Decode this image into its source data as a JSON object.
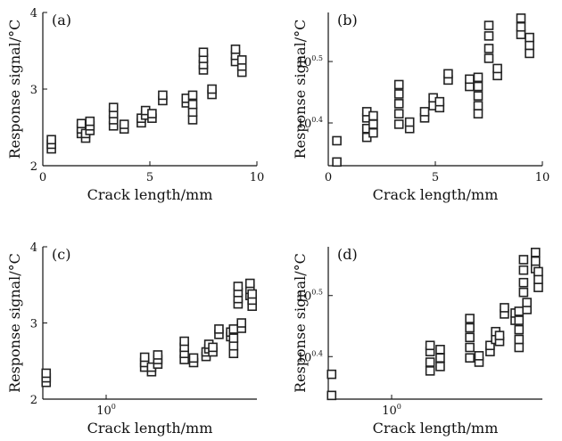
{
  "chart_data": [
    {
      "panel": "(a)",
      "type": "scatter",
      "xlabel": "Crack length/mm",
      "ylabel": "Response signal/°C",
      "xscale": "linear",
      "yscale": "linear",
      "xlim": [
        0,
        10
      ],
      "ylim": [
        2,
        4
      ],
      "xticks": [
        {
          "v": 0,
          "label": "0"
        },
        {
          "v": 5,
          "label": "5"
        },
        {
          "v": 10,
          "label": "10"
        }
      ],
      "yticks": [
        {
          "v": 2,
          "label": "2"
        },
        {
          "v": 3,
          "label": "3"
        },
        {
          "v": 4,
          "label": "4"
        }
      ],
      "points": [
        [
          0.4,
          2.22
        ],
        [
          0.4,
          2.28
        ],
        [
          0.4,
          2.34
        ],
        [
          1.8,
          2.42
        ],
        [
          1.8,
          2.48
        ],
        [
          1.8,
          2.55
        ],
        [
          2.0,
          2.36
        ],
        [
          2.0,
          2.42
        ],
        [
          2.2,
          2.46
        ],
        [
          2.2,
          2.52
        ],
        [
          2.2,
          2.58
        ],
        [
          3.3,
          2.52
        ],
        [
          3.3,
          2.6
        ],
        [
          3.3,
          2.68
        ],
        [
          3.3,
          2.76
        ],
        [
          3.8,
          2.48
        ],
        [
          3.8,
          2.54
        ],
        [
          4.6,
          2.56
        ],
        [
          4.6,
          2.62
        ],
        [
          4.8,
          2.66
        ],
        [
          4.8,
          2.72
        ],
        [
          5.1,
          2.62
        ],
        [
          5.1,
          2.68
        ],
        [
          5.6,
          2.85
        ],
        [
          5.6,
          2.92
        ],
        [
          6.7,
          2.82
        ],
        [
          6.7,
          2.88
        ],
        [
          7.0,
          2.6
        ],
        [
          7.0,
          2.7
        ],
        [
          7.0,
          2.8
        ],
        [
          7.0,
          2.92
        ],
        [
          7.5,
          3.25
        ],
        [
          7.5,
          3.32
        ],
        [
          7.5,
          3.4
        ],
        [
          7.5,
          3.48
        ],
        [
          7.9,
          2.93
        ],
        [
          7.9,
          3.0
        ],
        [
          9.0,
          3.36
        ],
        [
          9.0,
          3.44
        ],
        [
          9.0,
          3.52
        ],
        [
          9.3,
          3.22
        ],
        [
          9.3,
          3.3
        ],
        [
          9.3,
          3.38
        ]
      ]
    },
    {
      "panel": "(b)",
      "type": "scatter",
      "xlabel": "Crack length/mm",
      "ylabel": "Response signal/°C",
      "xscale": "linear",
      "yscale": "log",
      "xlim": [
        0,
        10
      ],
      "ylim": [
        2.14,
        3.8
      ],
      "xticks": [
        {
          "v": 0,
          "label": "0"
        },
        {
          "v": 5,
          "label": "5"
        },
        {
          "v": 10,
          "label": "10"
        }
      ],
      "yticks": [
        {
          "v": 2.512,
          "base": "10",
          "exp": "0.4"
        },
        {
          "v": 3.162,
          "base": "10",
          "exp": "0.5"
        }
      ],
      "points": [
        [
          0.4,
          2.17
        ],
        [
          0.4,
          2.35
        ],
        [
          1.8,
          2.38
        ],
        [
          1.8,
          2.46
        ],
        [
          1.8,
          2.56
        ],
        [
          1.8,
          2.62
        ],
        [
          2.1,
          2.42
        ],
        [
          2.1,
          2.5
        ],
        [
          2.1,
          2.58
        ],
        [
          3.3,
          2.5
        ],
        [
          3.3,
          2.6
        ],
        [
          3.3,
          2.7
        ],
        [
          3.3,
          2.8
        ],
        [
          3.3,
          2.9
        ],
        [
          3.8,
          2.46
        ],
        [
          3.8,
          2.52
        ],
        [
          4.5,
          2.56
        ],
        [
          4.5,
          2.62
        ],
        [
          4.9,
          2.68
        ],
        [
          4.9,
          2.76
        ],
        [
          5.2,
          2.66
        ],
        [
          5.2,
          2.72
        ],
        [
          5.6,
          2.95
        ],
        [
          5.6,
          3.02
        ],
        [
          6.6,
          2.88
        ],
        [
          6.6,
          2.96
        ],
        [
          7.0,
          2.6
        ],
        [
          7.0,
          2.68
        ],
        [
          7.0,
          2.78
        ],
        [
          7.0,
          2.88
        ],
        [
          7.0,
          2.98
        ],
        [
          7.5,
          3.2
        ],
        [
          7.5,
          3.32
        ],
        [
          7.5,
          3.48
        ],
        [
          7.5,
          3.62
        ],
        [
          7.9,
          3.0
        ],
        [
          7.9,
          3.08
        ],
        [
          9.0,
          3.5
        ],
        [
          9.0,
          3.6
        ],
        [
          9.0,
          3.72
        ],
        [
          9.4,
          3.26
        ],
        [
          9.4,
          3.36
        ],
        [
          9.4,
          3.46
        ]
      ]
    },
    {
      "panel": "(c)",
      "type": "scatter",
      "xlabel": "Crack length/mm",
      "ylabel": "Response signal/°C",
      "xscale": "log",
      "yscale": "linear",
      "xlim": [
        0.38,
        10
      ],
      "ylim": [
        2,
        4
      ],
      "xticks": [
        {
          "v": 1,
          "base": "10",
          "exp": "0"
        }
      ],
      "yticks": [
        {
          "v": 2,
          "label": "2"
        },
        {
          "v": 3,
          "label": "3"
        },
        {
          "v": 4,
          "label": "4"
        }
      ],
      "points": [
        [
          0.4,
          2.22
        ],
        [
          0.4,
          2.28
        ],
        [
          0.4,
          2.34
        ],
        [
          1.8,
          2.42
        ],
        [
          1.8,
          2.48
        ],
        [
          1.8,
          2.55
        ],
        [
          2.0,
          2.36
        ],
        [
          2.0,
          2.42
        ],
        [
          2.2,
          2.46
        ],
        [
          2.2,
          2.52
        ],
        [
          2.2,
          2.58
        ],
        [
          3.3,
          2.52
        ],
        [
          3.3,
          2.6
        ],
        [
          3.3,
          2.68
        ],
        [
          3.3,
          2.76
        ],
        [
          3.8,
          2.48
        ],
        [
          3.8,
          2.54
        ],
        [
          4.6,
          2.56
        ],
        [
          4.6,
          2.62
        ],
        [
          4.8,
          2.66
        ],
        [
          4.8,
          2.72
        ],
        [
          5.1,
          2.62
        ],
        [
          5.1,
          2.68
        ],
        [
          5.6,
          2.85
        ],
        [
          5.6,
          2.92
        ],
        [
          6.7,
          2.82
        ],
        [
          6.7,
          2.88
        ],
        [
          7.0,
          2.6
        ],
        [
          7.0,
          2.7
        ],
        [
          7.0,
          2.8
        ],
        [
          7.0,
          2.92
        ],
        [
          7.5,
          3.25
        ],
        [
          7.5,
          3.32
        ],
        [
          7.5,
          3.4
        ],
        [
          7.5,
          3.48
        ],
        [
          7.9,
          2.93
        ],
        [
          7.9,
          3.0
        ],
        [
          9.0,
          3.36
        ],
        [
          9.0,
          3.44
        ],
        [
          9.0,
          3.52
        ],
        [
          9.3,
          3.22
        ],
        [
          9.3,
          3.3
        ],
        [
          9.3,
          3.38
        ]
      ]
    },
    {
      "panel": "(d)",
      "type": "scatter",
      "xlabel": "Crack length/mm",
      "ylabel": "Response signal/°C",
      "xscale": "log",
      "yscale": "log",
      "xlim": [
        0.38,
        10
      ],
      "ylim": [
        2.14,
        3.8
      ],
      "xticks": [
        {
          "v": 1,
          "base": "10",
          "exp": "0"
        }
      ],
      "yticks": [
        {
          "v": 2.512,
          "base": "10",
          "exp": "0.4"
        },
        {
          "v": 3.162,
          "base": "10",
          "exp": "0.5"
        }
      ],
      "points": [
        [
          0.4,
          2.17
        ],
        [
          0.4,
          2.35
        ],
        [
          1.8,
          2.38
        ],
        [
          1.8,
          2.46
        ],
        [
          1.8,
          2.56
        ],
        [
          1.8,
          2.62
        ],
        [
          2.1,
          2.42
        ],
        [
          2.1,
          2.5
        ],
        [
          2.1,
          2.58
        ],
        [
          3.3,
          2.5
        ],
        [
          3.3,
          2.6
        ],
        [
          3.3,
          2.7
        ],
        [
          3.3,
          2.8
        ],
        [
          3.3,
          2.9
        ],
        [
          3.8,
          2.46
        ],
        [
          3.8,
          2.52
        ],
        [
          4.5,
          2.56
        ],
        [
          4.5,
          2.62
        ],
        [
          4.9,
          2.68
        ],
        [
          4.9,
          2.76
        ],
        [
          5.2,
          2.66
        ],
        [
          5.2,
          2.72
        ],
        [
          5.6,
          2.95
        ],
        [
          5.6,
          3.02
        ],
        [
          6.6,
          2.88
        ],
        [
          6.6,
          2.96
        ],
        [
          7.0,
          2.6
        ],
        [
          7.0,
          2.68
        ],
        [
          7.0,
          2.78
        ],
        [
          7.0,
          2.88
        ],
        [
          7.0,
          2.98
        ],
        [
          7.5,
          3.2
        ],
        [
          7.5,
          3.32
        ],
        [
          7.5,
          3.48
        ],
        [
          7.5,
          3.62
        ],
        [
          7.9,
          3.0
        ],
        [
          7.9,
          3.08
        ],
        [
          9.0,
          3.5
        ],
        [
          9.0,
          3.6
        ],
        [
          9.0,
          3.72
        ],
        [
          9.4,
          3.26
        ],
        [
          9.4,
          3.36
        ],
        [
          9.4,
          3.46
        ]
      ]
    }
  ]
}
